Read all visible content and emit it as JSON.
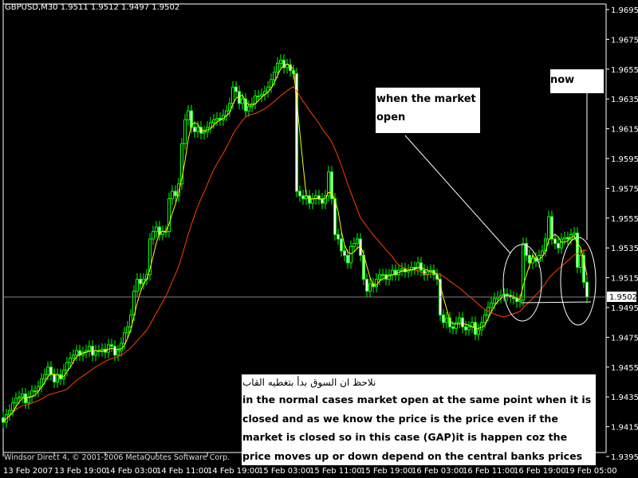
{
  "header": {
    "symbol_title": "GBPUSD,M30  1.9511 1.9512 1.9497 1.9502"
  },
  "footer": {
    "copyright": "Windsor Direct 4, © 2001-2006 MetaQuotes Software Corp."
  },
  "colors": {
    "background": "#000000",
    "candle": "#00ff00",
    "ma_fast": "#ffff00",
    "ma_slow": "#ff4000",
    "bid_line": "#808080",
    "annotation": "#ffffff"
  },
  "annotations": {
    "when_open": [
      "when the market",
      "open"
    ],
    "now": "now",
    "arabic_note": "نلاحظ ان السوق بدأ بتغطيه القاب",
    "explanation": "in the normal cases market open at the same point when it is closed and as we know the price is the price even if the market is closed so in this case (GAP)it is happen coz the price moves up or down depend on the central banks prices"
  },
  "chart_data": {
    "type": "candlestick",
    "title": "GBPUSD,M30",
    "ohlc_last": {
      "open": 1.9511,
      "high": 1.9512,
      "low": 1.9497,
      "close": 1.9502
    },
    "current_price": "1.9502",
    "ylim": [
      1.9385,
      1.9705
    ],
    "y_ticks": [
      "1.9695",
      "1.9675",
      "1.9655",
      "1.9635",
      "1.9615",
      "1.9595",
      "1.9575",
      "1.9555",
      "1.9535",
      "1.9515",
      "1.9495",
      "1.9475",
      "1.9455",
      "1.9435",
      "1.9415",
      "1.9395"
    ],
    "x_ticks": [
      "13 Feb 2007",
      "13 Feb 19:00",
      "14 Feb 03:00",
      "14 Feb 11:00",
      "14 Feb 19:00",
      "15 Feb 03:00",
      "15 Feb 11:00",
      "15 Feb 19:00",
      "16 Feb 03:00",
      "16 Feb 11:00",
      "16 Feb 19:00",
      "19 Feb 05:00"
    ],
    "grid": false,
    "moving_averages": [
      "fast",
      "slow"
    ],
    "closes": [
      1.9418,
      1.9423,
      1.9426,
      1.9431,
      1.9434,
      1.9435,
      1.9437,
      1.9431,
      1.9435,
      1.9439,
      1.9439,
      1.9442,
      1.9447,
      1.945,
      1.9455,
      1.945,
      1.9445,
      1.945,
      1.9447,
      1.9453,
      1.9458,
      1.9461,
      1.9463,
      1.9466,
      1.9463,
      1.9465,
      1.9466,
      1.9469,
      1.9463,
      1.9466,
      1.9466,
      1.9467,
      1.9465,
      1.947,
      1.9469,
      1.9463,
      1.9466,
      1.9471,
      1.9478,
      1.9482,
      1.949,
      1.9506,
      1.9514,
      1.9511,
      1.9514,
      1.9517,
      1.9541,
      1.9546,
      1.9549,
      1.9544,
      1.9546,
      1.9546,
      1.9568,
      1.9573,
      1.957,
      1.9578,
      1.9605,
      1.9621,
      1.9627,
      1.9616,
      1.9613,
      1.9616,
      1.9612,
      1.9613,
      1.9616,
      1.9619,
      1.9621,
      1.9622,
      1.9621,
      1.9624,
      1.9627,
      1.9632,
      1.9643,
      1.964,
      1.9632,
      1.9635,
      1.9627,
      1.963,
      1.9632,
      1.9637,
      1.9637,
      1.9638,
      1.964,
      1.9643,
      1.9648,
      1.9653,
      1.9659,
      1.9661,
      1.9656,
      1.9658,
      1.9654,
      1.9652,
      1.9573,
      1.957,
      1.9568,
      1.957,
      1.9565,
      1.9568,
      1.957,
      1.9568,
      1.9565,
      1.957,
      1.9586,
      1.9568,
      1.9544,
      1.9541,
      1.9533,
      1.953,
      1.9525,
      1.9536,
      1.9538,
      1.9541,
      1.953,
      1.9514,
      1.9506,
      1.9511,
      1.9509,
      1.9514,
      1.9517,
      1.9517,
      1.9514,
      1.9517,
      1.952,
      1.9517,
      1.952,
      1.9521,
      1.9519,
      1.952,
      1.9522,
      1.9521,
      1.9525,
      1.952,
      1.9517,
      1.9519,
      1.952,
      1.9517,
      1.9514,
      1.949,
      1.9485,
      1.9488,
      1.9482,
      1.9481,
      1.9485,
      1.9488,
      1.9482,
      1.948,
      1.9482,
      1.9485,
      1.9477,
      1.948,
      1.9485,
      1.949,
      1.9495,
      1.9498,
      1.9501,
      1.9502,
      1.9503,
      1.9504,
      1.9503,
      1.9502,
      1.9501,
      1.9499,
      1.95,
      1.9538,
      1.953,
      1.9525,
      1.9528,
      1.9526,
      1.953,
      1.9533,
      1.9541,
      1.9556,
      1.9541,
      1.9538,
      1.9535,
      1.9541,
      1.9542,
      1.9541,
      1.9544,
      1.9545,
      1.9522,
      1.953,
      1.9512,
      1.9502
    ]
  }
}
